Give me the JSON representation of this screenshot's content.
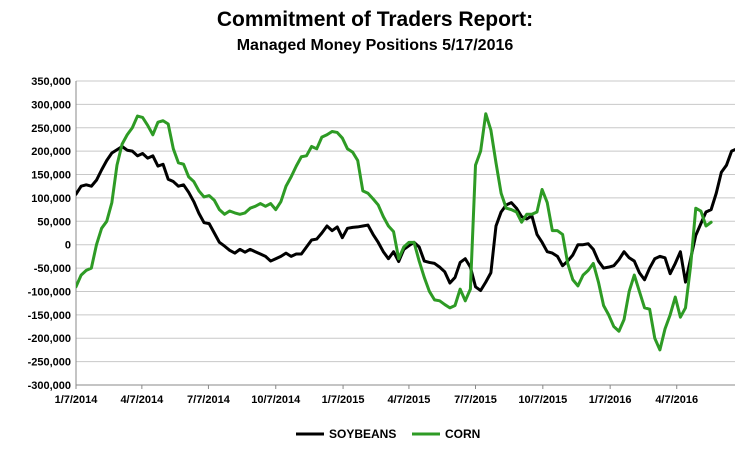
{
  "chart_data": {
    "type": "line",
    "title": "Commitment of Traders Report:",
    "subtitle": "Managed Money Positions 5/17/2016",
    "xlabel": "",
    "ylabel": "",
    "ylim": [
      -300000,
      350000
    ],
    "xlim": [
      "2014-01-07",
      "2016-05-17"
    ],
    "grid": "horizontal",
    "legend_position": "bottom",
    "y_ticks": [
      "350,000",
      "300,000",
      "250,000",
      "200,000",
      "150,000",
      "100,000",
      "50,000",
      "0",
      "-50,000",
      "-100,000",
      "-150,000",
      "-200,000",
      "-250,000",
      "-300,000"
    ],
    "x_ticks": [
      {
        "date": "2014-01-07",
        "label": "1/7/2014"
      },
      {
        "date": "2014-04-07",
        "label": "4/7/2014"
      },
      {
        "date": "2014-07-07",
        "label": "7/7/2014"
      },
      {
        "date": "2014-10-07",
        "label": "10/7/2014"
      },
      {
        "date": "2015-01-07",
        "label": "1/7/2015"
      },
      {
        "date": "2015-04-07",
        "label": "4/7/2015"
      },
      {
        "date": "2015-07-07",
        "label": "7/7/2015"
      },
      {
        "date": "2015-10-07",
        "label": "10/7/2015"
      },
      {
        "date": "2016-01-07",
        "label": "1/7/2016"
      },
      {
        "date": "2016-04-07",
        "label": "4/7/2016"
      }
    ],
    "series": [
      {
        "name": "SOYBEANS",
        "color": "#000000",
        "points": [
          [
            "2014-01-07",
            108000
          ],
          [
            "2014-01-14",
            125000
          ],
          [
            "2014-01-21",
            128000
          ],
          [
            "2014-01-28",
            125000
          ],
          [
            "2014-02-04",
            138000
          ],
          [
            "2014-02-11",
            160000
          ],
          [
            "2014-02-18",
            180000
          ],
          [
            "2014-02-25",
            196000
          ],
          [
            "2014-03-04",
            203000
          ],
          [
            "2014-03-11",
            210000
          ],
          [
            "2014-03-18",
            202000
          ],
          [
            "2014-03-25",
            200000
          ],
          [
            "2014-04-01",
            190000
          ],
          [
            "2014-04-08",
            195000
          ],
          [
            "2014-04-15",
            185000
          ],
          [
            "2014-04-22",
            190000
          ],
          [
            "2014-04-29",
            168000
          ],
          [
            "2014-05-06",
            172000
          ],
          [
            "2014-05-13",
            140000
          ],
          [
            "2014-05-20",
            135000
          ],
          [
            "2014-05-27",
            125000
          ],
          [
            "2014-06-03",
            128000
          ],
          [
            "2014-06-10",
            112000
          ],
          [
            "2014-06-17",
            92000
          ],
          [
            "2014-06-24",
            67000
          ],
          [
            "2014-07-01",
            47000
          ],
          [
            "2014-07-08",
            45000
          ],
          [
            "2014-07-15",
            25000
          ],
          [
            "2014-07-22",
            5000
          ],
          [
            "2014-07-29",
            -3000
          ],
          [
            "2014-08-05",
            -12000
          ],
          [
            "2014-08-12",
            -18000
          ],
          [
            "2014-08-19",
            -10000
          ],
          [
            "2014-08-26",
            -16000
          ],
          [
            "2014-09-02",
            -10000
          ],
          [
            "2014-09-09",
            -15000
          ],
          [
            "2014-09-16",
            -20000
          ],
          [
            "2014-09-23",
            -25000
          ],
          [
            "2014-09-30",
            -35000
          ],
          [
            "2014-10-07",
            -30000
          ],
          [
            "2014-10-14",
            -25000
          ],
          [
            "2014-10-21",
            -18000
          ],
          [
            "2014-10-28",
            -25000
          ],
          [
            "2014-11-04",
            -20000
          ],
          [
            "2014-11-11",
            -20000
          ],
          [
            "2014-11-18",
            -5000
          ],
          [
            "2014-11-25",
            10000
          ],
          [
            "2014-12-02",
            12000
          ],
          [
            "2014-12-09",
            25000
          ],
          [
            "2014-12-16",
            40000
          ],
          [
            "2014-12-23",
            30000
          ],
          [
            "2014-12-30",
            38000
          ],
          [
            "2015-01-06",
            15000
          ],
          [
            "2015-01-13",
            35000
          ],
          [
            "2015-01-20",
            37000
          ],
          [
            "2015-01-27",
            38000
          ],
          [
            "2015-02-03",
            40000
          ],
          [
            "2015-02-10",
            42000
          ],
          [
            "2015-02-17",
            22000
          ],
          [
            "2015-02-24",
            5000
          ],
          [
            "2015-03-03",
            -15000
          ],
          [
            "2015-03-10",
            -30000
          ],
          [
            "2015-03-17",
            -15000
          ],
          [
            "2015-03-24",
            -36000
          ],
          [
            "2015-03-31",
            -10000
          ],
          [
            "2015-04-07",
            -2000
          ],
          [
            "2015-04-14",
            5000
          ],
          [
            "2015-04-21",
            -5000
          ],
          [
            "2015-04-28",
            -35000
          ],
          [
            "2015-05-05",
            -38000
          ],
          [
            "2015-05-12",
            -40000
          ],
          [
            "2015-05-19",
            -48000
          ],
          [
            "2015-05-26",
            -58000
          ],
          [
            "2015-06-02",
            -82000
          ],
          [
            "2015-06-09",
            -70000
          ],
          [
            "2015-06-16",
            -38000
          ],
          [
            "2015-06-23",
            -30000
          ],
          [
            "2015-06-30",
            -48000
          ],
          [
            "2015-07-07",
            -90000
          ],
          [
            "2015-07-14",
            -98000
          ],
          [
            "2015-07-21",
            -80000
          ],
          [
            "2015-07-28",
            -60000
          ],
          [
            "2015-08-04",
            40000
          ],
          [
            "2015-08-11",
            70000
          ],
          [
            "2015-08-18",
            85000
          ],
          [
            "2015-08-25",
            90000
          ],
          [
            "2015-09-01",
            78000
          ],
          [
            "2015-09-08",
            60000
          ],
          [
            "2015-09-15",
            55000
          ],
          [
            "2015-09-22",
            62000
          ],
          [
            "2015-09-29",
            22000
          ],
          [
            "2015-10-06",
            5000
          ],
          [
            "2015-10-13",
            -15000
          ],
          [
            "2015-10-20",
            -18000
          ],
          [
            "2015-10-27",
            -25000
          ],
          [
            "2015-11-03",
            -45000
          ],
          [
            "2015-11-10",
            -35000
          ],
          [
            "2015-11-17",
            -22000
          ],
          [
            "2015-11-24",
            0
          ],
          [
            "2015-12-01",
            0
          ],
          [
            "2015-12-08",
            2000
          ],
          [
            "2015-12-15",
            -10000
          ],
          [
            "2015-12-22",
            -35000
          ],
          [
            "2015-12-29",
            -50000
          ],
          [
            "2016-01-05",
            -48000
          ],
          [
            "2016-01-12",
            -45000
          ],
          [
            "2016-01-19",
            -32000
          ],
          [
            "2016-01-26",
            -15000
          ],
          [
            "2016-02-02",
            -28000
          ],
          [
            "2016-02-09",
            -35000
          ],
          [
            "2016-02-16",
            -60000
          ],
          [
            "2016-02-23",
            -75000
          ],
          [
            "2016-03-01",
            -50000
          ],
          [
            "2016-03-08",
            -30000
          ],
          [
            "2016-03-15",
            -25000
          ],
          [
            "2016-03-22",
            -28000
          ],
          [
            "2016-03-29",
            -62000
          ],
          [
            "2016-04-05",
            -40000
          ],
          [
            "2016-04-12",
            -15000
          ],
          [
            "2016-04-19",
            -80000
          ],
          [
            "2016-04-26",
            -30000
          ],
          [
            "2016-05-03",
            20000
          ],
          [
            "2016-05-10",
            45000
          ],
          [
            "2016-05-17",
            70000
          ],
          [
            "2016-05-24",
            75000
          ],
          [
            "2016-05-31",
            110000
          ],
          [
            "2016-06-07",
            155000
          ],
          [
            "2016-06-14",
            170000
          ],
          [
            "2016-06-21",
            200000
          ],
          [
            "2016-06-28",
            205000
          ]
        ]
      },
      {
        "name": "CORN",
        "color": "#2e9b25",
        "points": [
          [
            "2014-01-07",
            -90000
          ],
          [
            "2014-01-14",
            -65000
          ],
          [
            "2014-01-21",
            -55000
          ],
          [
            "2014-01-28",
            -50000
          ],
          [
            "2014-02-04",
            0
          ],
          [
            "2014-02-11",
            35000
          ],
          [
            "2014-02-18",
            50000
          ],
          [
            "2014-02-25",
            90000
          ],
          [
            "2014-03-04",
            170000
          ],
          [
            "2014-03-11",
            215000
          ],
          [
            "2014-03-18",
            235000
          ],
          [
            "2014-03-25",
            250000
          ],
          [
            "2014-04-01",
            275000
          ],
          [
            "2014-04-08",
            272000
          ],
          [
            "2014-04-15",
            255000
          ],
          [
            "2014-04-22",
            235000
          ],
          [
            "2014-04-29",
            262000
          ],
          [
            "2014-05-06",
            265000
          ],
          [
            "2014-05-13",
            258000
          ],
          [
            "2014-05-20",
            205000
          ],
          [
            "2014-05-27",
            175000
          ],
          [
            "2014-06-03",
            172000
          ],
          [
            "2014-06-10",
            145000
          ],
          [
            "2014-06-17",
            135000
          ],
          [
            "2014-06-24",
            115000
          ],
          [
            "2014-07-01",
            102000
          ],
          [
            "2014-07-08",
            105000
          ],
          [
            "2014-07-15",
            95000
          ],
          [
            "2014-07-22",
            75000
          ],
          [
            "2014-07-29",
            65000
          ],
          [
            "2014-08-05",
            72000
          ],
          [
            "2014-08-12",
            68000
          ],
          [
            "2014-08-19",
            65000
          ],
          [
            "2014-08-26",
            68000
          ],
          [
            "2014-09-02",
            78000
          ],
          [
            "2014-09-09",
            82000
          ],
          [
            "2014-09-16",
            88000
          ],
          [
            "2014-09-23",
            82000
          ],
          [
            "2014-09-30",
            88000
          ],
          [
            "2014-10-07",
            75000
          ],
          [
            "2014-10-14",
            92000
          ],
          [
            "2014-10-21",
            125000
          ],
          [
            "2014-10-28",
            145000
          ],
          [
            "2014-11-04",
            168000
          ],
          [
            "2014-11-11",
            188000
          ],
          [
            "2014-11-18",
            190000
          ],
          [
            "2014-11-25",
            210000
          ],
          [
            "2014-12-02",
            205000
          ],
          [
            "2014-12-09",
            230000
          ],
          [
            "2014-12-16",
            235000
          ],
          [
            "2014-12-23",
            242000
          ],
          [
            "2014-12-30",
            240000
          ],
          [
            "2015-01-06",
            228000
          ],
          [
            "2015-01-13",
            205000
          ],
          [
            "2015-01-20",
            198000
          ],
          [
            "2015-01-27",
            180000
          ],
          [
            "2015-02-03",
            115000
          ],
          [
            "2015-02-10",
            110000
          ],
          [
            "2015-02-17",
            98000
          ],
          [
            "2015-02-24",
            85000
          ],
          [
            "2015-03-03",
            60000
          ],
          [
            "2015-03-10",
            40000
          ],
          [
            "2015-03-17",
            28000
          ],
          [
            "2015-03-24",
            -30000
          ],
          [
            "2015-03-31",
            -5000
          ],
          [
            "2015-04-07",
            5000
          ],
          [
            "2015-04-14",
            5000
          ],
          [
            "2015-04-21",
            -35000
          ],
          [
            "2015-04-28",
            -70000
          ],
          [
            "2015-05-05",
            -100000
          ],
          [
            "2015-05-12",
            -118000
          ],
          [
            "2015-05-19",
            -120000
          ],
          [
            "2015-05-26",
            -128000
          ],
          [
            "2015-06-02",
            -135000
          ],
          [
            "2015-06-09",
            -130000
          ],
          [
            "2015-06-16",
            -95000
          ],
          [
            "2015-06-23",
            -120000
          ],
          [
            "2015-06-30",
            -95000
          ],
          [
            "2015-07-07",
            170000
          ],
          [
            "2015-07-14",
            200000
          ],
          [
            "2015-07-21",
            280000
          ],
          [
            "2015-07-28",
            245000
          ],
          [
            "2015-08-04",
            175000
          ],
          [
            "2015-08-11",
            110000
          ],
          [
            "2015-08-18",
            78000
          ],
          [
            "2015-08-25",
            75000
          ],
          [
            "2015-09-01",
            70000
          ],
          [
            "2015-09-08",
            48000
          ],
          [
            "2015-09-15",
            65000
          ],
          [
            "2015-09-22",
            65000
          ],
          [
            "2015-09-29",
            70000
          ],
          [
            "2015-10-06",
            118000
          ],
          [
            "2015-10-13",
            90000
          ],
          [
            "2015-10-20",
            30000
          ],
          [
            "2015-10-27",
            30000
          ],
          [
            "2015-11-03",
            22000
          ],
          [
            "2015-11-10",
            -40000
          ],
          [
            "2015-11-17",
            -75000
          ],
          [
            "2015-11-24",
            -88000
          ],
          [
            "2015-12-01",
            -65000
          ],
          [
            "2015-12-08",
            -55000
          ],
          [
            "2015-12-15",
            -40000
          ],
          [
            "2015-12-22",
            -80000
          ],
          [
            "2015-12-29",
            -130000
          ],
          [
            "2016-01-05",
            -150000
          ],
          [
            "2016-01-12",
            -175000
          ],
          [
            "2016-01-19",
            -185000
          ],
          [
            "2016-01-26",
            -160000
          ],
          [
            "2016-02-02",
            -100000
          ],
          [
            "2016-02-09",
            -65000
          ],
          [
            "2016-02-16",
            -100000
          ],
          [
            "2016-02-23",
            -135000
          ],
          [
            "2016-03-01",
            -138000
          ],
          [
            "2016-03-08",
            -200000
          ],
          [
            "2016-03-15",
            -225000
          ],
          [
            "2016-03-22",
            -180000
          ],
          [
            "2016-03-29",
            -150000
          ],
          [
            "2016-04-05",
            -112000
          ],
          [
            "2016-04-12",
            -155000
          ],
          [
            "2016-04-19",
            -135000
          ],
          [
            "2016-04-26",
            -45000
          ],
          [
            "2016-05-03",
            78000
          ],
          [
            "2016-05-10",
            72000
          ],
          [
            "2016-05-17",
            40000
          ],
          [
            "2016-05-24",
            48000
          ]
        ]
      }
    ]
  }
}
